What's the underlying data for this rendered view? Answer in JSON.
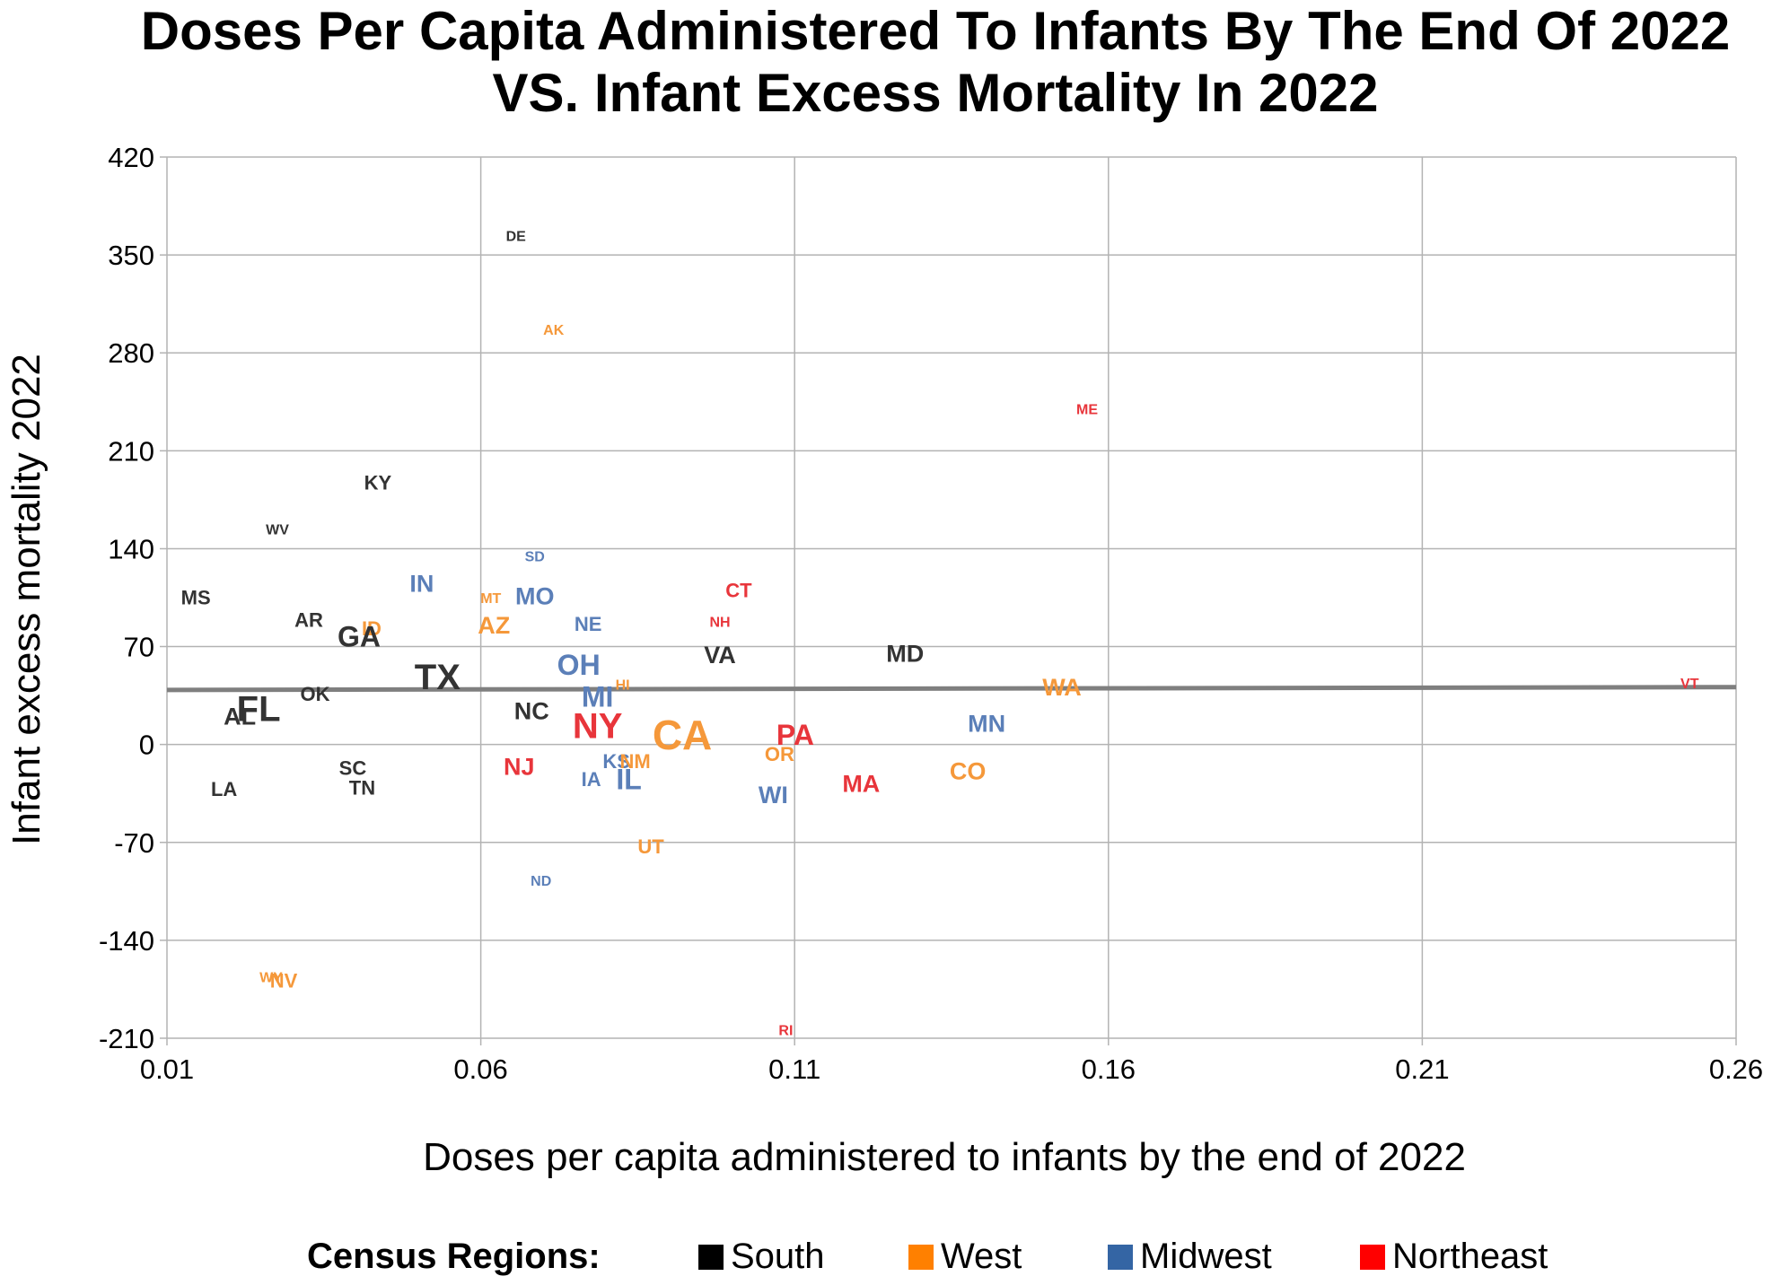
{
  "chart_data": {
    "type": "scatter",
    "title": [
      "Doses Per Capita Administered To Infants By The End Of 2022",
      "VS. Infant Excess Mortality In 2022"
    ],
    "xlabel": "Doses per capita administered to infants by the end of 2022",
    "ylabel": "Infant excess mortality 2022",
    "xlim": [
      0.01,
      0.26
    ],
    "ylim": [
      -210,
      420
    ],
    "xticks": [
      0.01,
      0.06,
      0.11,
      0.16,
      0.21,
      0.26
    ],
    "xtick_labels": [
      "0.01",
      "0.06",
      "0.11",
      "0.16",
      "0.21",
      "0.26"
    ],
    "yticks": [
      -210,
      -140,
      -70,
      0,
      70,
      140,
      210,
      280,
      350,
      420
    ],
    "ytick_labels": [
      "-210",
      "-140",
      "-70",
      "0",
      "70",
      "140",
      "210",
      "280",
      "350",
      "420"
    ],
    "grid": true,
    "legend_placement": "bottom",
    "trendline": {
      "x": [
        0.01,
        0.26
      ],
      "y": [
        39,
        41
      ],
      "color": "#7f7f7f"
    },
    "legend": {
      "title": "Census Regions:",
      "entries": [
        {
          "region": "South",
          "label": "South",
          "color": "#000000"
        },
        {
          "region": "West",
          "label": "West",
          "color": "#ff8000"
        },
        {
          "region": "Midwest",
          "label": "Midwest",
          "color": "#3465a4"
        },
        {
          "region": "Northeast",
          "label": "Northeast",
          "color": "#ff0000"
        }
      ]
    },
    "region_text_colors": {
      "South": "#333333",
      "West": "#f5983a",
      "Midwest": "#5b7fb8",
      "Northeast": "#e8353b"
    },
    "points": [
      {
        "label": "DE",
        "region": "South",
        "x": 0.0656,
        "y": 363,
        "size": "xs"
      },
      {
        "label": "AK",
        "region": "West",
        "x": 0.0716,
        "y": 296,
        "size": "xs"
      },
      {
        "label": "ME",
        "region": "Northeast",
        "x": 0.1566,
        "y": 239,
        "size": "xs"
      },
      {
        "label": "KY",
        "region": "South",
        "x": 0.0436,
        "y": 187,
        "size": "s"
      },
      {
        "label": "WV",
        "region": "South",
        "x": 0.0276,
        "y": 153,
        "size": "xs"
      },
      {
        "label": "SD",
        "region": "Midwest",
        "x": 0.0686,
        "y": 134,
        "size": "xs"
      },
      {
        "label": "IN",
        "region": "Midwest",
        "x": 0.0506,
        "y": 115,
        "size": "m"
      },
      {
        "label": "CT",
        "region": "Northeast",
        "x": 0.1011,
        "y": 110,
        "size": "s"
      },
      {
        "label": "MS",
        "region": "South",
        "x": 0.0146,
        "y": 105,
        "size": "s"
      },
      {
        "label": "MT",
        "region": "West",
        "x": 0.0616,
        "y": 104,
        "size": "xs"
      },
      {
        "label": "MO",
        "region": "Midwest",
        "x": 0.0686,
        "y": 106,
        "size": "m"
      },
      {
        "label": "AR",
        "region": "South",
        "x": 0.0326,
        "y": 89,
        "size": "s"
      },
      {
        "label": "NE",
        "region": "Midwest",
        "x": 0.0771,
        "y": 86,
        "size": "s"
      },
      {
        "label": "NH",
        "region": "Northeast",
        "x": 0.0981,
        "y": 87,
        "size": "xs"
      },
      {
        "label": "ID",
        "region": "West",
        "x": 0.0426,
        "y": 83,
        "size": "s"
      },
      {
        "label": "AZ",
        "region": "West",
        "x": 0.0621,
        "y": 85,
        "size": "m"
      },
      {
        "label": "GA",
        "region": "South",
        "x": 0.0406,
        "y": 77,
        "size": "l"
      },
      {
        "label": "VA",
        "region": "South",
        "x": 0.0981,
        "y": 64,
        "size": "m"
      },
      {
        "label": "MD",
        "region": "South",
        "x": 0.1276,
        "y": 65,
        "size": "m"
      },
      {
        "label": "OH",
        "region": "Midwest",
        "x": 0.0756,
        "y": 57,
        "size": "l"
      },
      {
        "label": "TX",
        "region": "South",
        "x": 0.0531,
        "y": 48,
        "size": "xl"
      },
      {
        "label": "WA",
        "region": "West",
        "x": 0.1526,
        "y": 41,
        "size": "m"
      },
      {
        "label": "VT",
        "region": "Northeast",
        "x": 0.2526,
        "y": 43,
        "size": "xs"
      },
      {
        "label": "HI",
        "region": "West",
        "x": 0.0826,
        "y": 42,
        "size": "xs"
      },
      {
        "label": "MI",
        "region": "Midwest",
        "x": 0.0786,
        "y": 34,
        "size": "l"
      },
      {
        "label": "OK",
        "region": "South",
        "x": 0.0336,
        "y": 36,
        "size": "s"
      },
      {
        "label": "FL",
        "region": "South",
        "x": 0.0246,
        "y": 25,
        "size": "xl"
      },
      {
        "label": "AL",
        "region": "South",
        "x": 0.0216,
        "y": 20,
        "size": "m"
      },
      {
        "label": "NC",
        "region": "South",
        "x": 0.0681,
        "y": 24,
        "size": "m"
      },
      {
        "label": "NY",
        "region": "Northeast",
        "x": 0.0786,
        "y": 13,
        "size": "xl"
      },
      {
        "label": "CA",
        "region": "West",
        "x": 0.0921,
        "y": 7,
        "size": "xxl"
      },
      {
        "label": "PA",
        "region": "Northeast",
        "x": 0.1101,
        "y": 7,
        "size": "l"
      },
      {
        "label": "MN",
        "region": "Midwest",
        "x": 0.1406,
        "y": 15,
        "size": "m"
      },
      {
        "label": "OR",
        "region": "West",
        "x": 0.1076,
        "y": -7,
        "size": "s"
      },
      {
        "label": "SC",
        "region": "South",
        "x": 0.0396,
        "y": -17,
        "size": "s"
      },
      {
        "label": "NJ",
        "region": "Northeast",
        "x": 0.0661,
        "y": -16,
        "size": "m"
      },
      {
        "label": "KS",
        "region": "Midwest",
        "x": 0.0816,
        "y": -12,
        "size": "s"
      },
      {
        "label": "NM",
        "region": "West",
        "x": 0.0846,
        "y": -12,
        "size": "s"
      },
      {
        "label": "CO",
        "region": "West",
        "x": 0.1376,
        "y": -19,
        "size": "m"
      },
      {
        "label": "IA",
        "region": "Midwest",
        "x": 0.0776,
        "y": -25,
        "size": "s"
      },
      {
        "label": "IL",
        "region": "Midwest",
        "x": 0.0836,
        "y": -25,
        "size": "l"
      },
      {
        "label": "MA",
        "region": "Northeast",
        "x": 0.1206,
        "y": -28,
        "size": "m"
      },
      {
        "label": "LA",
        "region": "South",
        "x": 0.0191,
        "y": -32,
        "size": "s"
      },
      {
        "label": "TN",
        "region": "South",
        "x": 0.0411,
        "y": -31,
        "size": "s"
      },
      {
        "label": "WI",
        "region": "Midwest",
        "x": 0.1066,
        "y": -36,
        "size": "m"
      },
      {
        "label": "UT",
        "region": "West",
        "x": 0.0871,
        "y": -73,
        "size": "s"
      },
      {
        "label": "ND",
        "region": "Midwest",
        "x": 0.0696,
        "y": -98,
        "size": "xs"
      },
      {
        "label": "WY",
        "region": "West",
        "x": 0.0266,
        "y": -167,
        "size": "xs"
      },
      {
        "label": "NV",
        "region": "West",
        "x": 0.0286,
        "y": -169,
        "size": "s"
      },
      {
        "label": "RI",
        "region": "Northeast",
        "x": 0.1086,
        "y": -205,
        "size": "xs"
      }
    ]
  }
}
